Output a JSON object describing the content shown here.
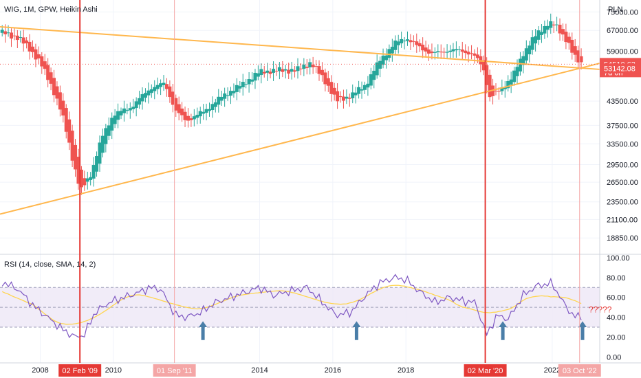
{
  "header": {
    "title": "WIG, 1M, GPW, Heikin Ashi",
    "currency": "PLN"
  },
  "colors": {
    "up": "#26a69a",
    "down": "#ef5350",
    "trendline": "#ffb74d",
    "rsi_line": "#7e57c2",
    "rsi_ma": "#ffd54f",
    "rsi_band": "#ede7f6",
    "marker_strong": "#e53935",
    "marker_light": "#f4a6a6",
    "arrow": "#4a7ea8",
    "question": "#e53935"
  },
  "price_badges": [
    {
      "label": "54510.63",
      "sub": "7d 6h",
      "value": 54510.63,
      "color": "#ef5350"
    },
    {
      "label": "53142.08",
      "value": 53142.08,
      "color": "#ef5350"
    }
  ],
  "chart_data": [
    {
      "type": "candlestick",
      "title": "WIG, 1M, GPW, Heikin Ashi",
      "ylabel": "PLN",
      "yscale": "log",
      "ylim": [
        17200,
        80000
      ],
      "xlim": [
        2006.9,
        2023.3
      ],
      "y_ticks": [
        {
          "value": 75000,
          "label": "75000.00"
        },
        {
          "value": 67000,
          "label": "67000.00"
        },
        {
          "value": 59000,
          "label": "59000.00"
        },
        {
          "value": 43500,
          "label": "43500.00"
        },
        {
          "value": 37500,
          "label": "37500.00"
        },
        {
          "value": 33500,
          "label": "33500.00"
        },
        {
          "value": 29500,
          "label": "29500.00"
        },
        {
          "value": 26500,
          "label": "26500.00"
        },
        {
          "value": 23500,
          "label": "23500.00"
        },
        {
          "value": 21100,
          "label": "21100.00"
        },
        {
          "value": 18850,
          "label": "18850.00"
        }
      ],
      "x_ticks": [
        {
          "value": 2008,
          "label": "2008"
        },
        {
          "value": 2010,
          "label": "2010"
        },
        {
          "value": 2014,
          "label": "2014"
        },
        {
          "value": 2016,
          "label": "2016"
        },
        {
          "value": 2018,
          "label": "2018"
        },
        {
          "value": 2022,
          "label": "2022"
        }
      ],
      "markers": [
        {
          "x": 2009.085,
          "label": "02 Feb '09",
          "style": "strong"
        },
        {
          "x": 2011.67,
          "label": "01 Sep '11",
          "style": "light"
        },
        {
          "x": 2020.17,
          "label": "02 Mar '20",
          "style": "strong"
        },
        {
          "x": 2022.75,
          "label": "03 Oct '22",
          "style": "light"
        }
      ],
      "trendlines": [
        {
          "from": [
            2006.9,
            68500
          ],
          "to": [
            2023.3,
            52800
          ]
        },
        {
          "from": [
            2006.9,
            21800
          ],
          "to": [
            2023.3,
            54800
          ]
        }
      ],
      "anchors": [
        [
          2007.0,
          66000
        ],
        [
          2007.4,
          64000
        ],
        [
          2007.7,
          60000
        ],
        [
          2008.0,
          55000
        ],
        [
          2008.3,
          48000
        ],
        [
          2008.6,
          40000
        ],
        [
          2008.9,
          30000
        ],
        [
          2009.1,
          25000
        ],
        [
          2009.4,
          28000
        ],
        [
          2009.7,
          35000
        ],
        [
          2010.0,
          40000
        ],
        [
          2010.5,
          42000
        ],
        [
          2011.0,
          47000
        ],
        [
          2011.4,
          48500
        ],
        [
          2011.7,
          41000
        ],
        [
          2012.0,
          38500
        ],
        [
          2012.5,
          41000
        ],
        [
          2013.0,
          45000
        ],
        [
          2013.5,
          48000
        ],
        [
          2014.0,
          52000
        ],
        [
          2014.5,
          52500
        ],
        [
          2015.0,
          52500
        ],
        [
          2015.4,
          55000
        ],
        [
          2015.8,
          49000
        ],
        [
          2016.1,
          43500
        ],
        [
          2016.5,
          45000
        ],
        [
          2016.9,
          48000
        ],
        [
          2017.3,
          56000
        ],
        [
          2017.7,
          62000
        ],
        [
          2018.0,
          64000
        ],
        [
          2018.3,
          61000
        ],
        [
          2018.7,
          58000
        ],
        [
          2019.0,
          59000
        ],
        [
          2019.5,
          59500
        ],
        [
          2019.9,
          57000
        ],
        [
          2020.1,
          54000
        ],
        [
          2020.3,
          44000
        ],
        [
          2020.6,
          47000
        ],
        [
          2020.9,
          50000
        ],
        [
          2021.2,
          58000
        ],
        [
          2021.6,
          66000
        ],
        [
          2021.9,
          70000
        ],
        [
          2022.1,
          69000
        ],
        [
          2022.4,
          63000
        ],
        [
          2022.6,
          57000
        ],
        [
          2022.83,
          54500
        ]
      ]
    },
    {
      "type": "line",
      "title": "RSI (14, close, SMA, 14, 2)",
      "ylim": [
        -6,
        102
      ],
      "y_ticks": [
        {
          "value": 100,
          "label": "100.00"
        },
        {
          "value": 80,
          "label": "80.00"
        },
        {
          "value": 60,
          "label": "60.00"
        },
        {
          "value": 40,
          "label": "40.00"
        },
        {
          "value": 20,
          "label": "20.00"
        },
        {
          "value": 0,
          "label": "0.00"
        }
      ],
      "band": [
        30,
        70
      ],
      "mid": 50,
      "rsi_anchors": [
        [
          2007.0,
          75
        ],
        [
          2007.4,
          68
        ],
        [
          2007.8,
          52
        ],
        [
          2008.2,
          40
        ],
        [
          2008.6,
          28
        ],
        [
          2008.95,
          20
        ],
        [
          2009.2,
          22
        ],
        [
          2009.5,
          45
        ],
        [
          2009.9,
          55
        ],
        [
          2010.3,
          60
        ],
        [
          2010.7,
          65
        ],
        [
          2011.0,
          70
        ],
        [
          2011.3,
          68
        ],
        [
          2011.7,
          42
        ],
        [
          2012.0,
          40
        ],
        [
          2012.4,
          45
        ],
        [
          2012.8,
          55
        ],
        [
          2013.2,
          60
        ],
        [
          2013.6,
          65
        ],
        [
          2014.0,
          70
        ],
        [
          2014.4,
          62
        ],
        [
          2014.8,
          66
        ],
        [
          2015.3,
          70
        ],
        [
          2015.8,
          52
        ],
        [
          2016.1,
          42
        ],
        [
          2016.5,
          45
        ],
        [
          2016.9,
          62
        ],
        [
          2017.3,
          75
        ],
        [
          2017.7,
          80
        ],
        [
          2018.0,
          78
        ],
        [
          2018.4,
          65
        ],
        [
          2018.8,
          55
        ],
        [
          2019.2,
          60
        ],
        [
          2019.6,
          56
        ],
        [
          2019.9,
          55
        ],
        [
          2020.2,
          22
        ],
        [
          2020.5,
          42
        ],
        [
          2020.8,
          38
        ],
        [
          2021.2,
          62
        ],
        [
          2021.6,
          72
        ],
        [
          2022.0,
          74
        ],
        [
          2022.3,
          55
        ],
        [
          2022.6,
          40
        ],
        [
          2022.82,
          42
        ]
      ],
      "annotation": "?????",
      "arrows": [
        2012.45,
        2016.65,
        2020.65,
        2022.83
      ]
    }
  ]
}
